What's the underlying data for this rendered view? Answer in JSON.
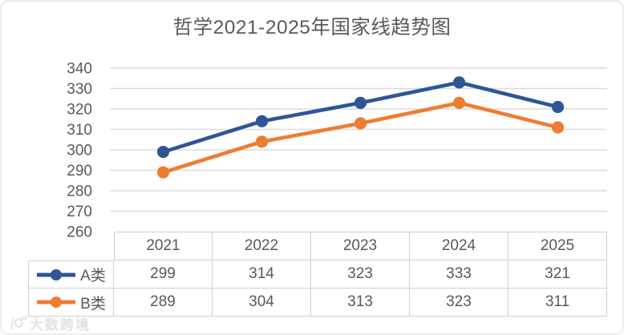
{
  "chart_data": {
    "type": "line",
    "title": "哲学2021-2025年国家线趋势图",
    "categories": [
      "2021",
      "2022",
      "2023",
      "2024",
      "2025"
    ],
    "series": [
      {
        "name": "A类",
        "values": [
          299,
          314,
          323,
          333,
          321
        ],
        "color": "#2F5597"
      },
      {
        "name": "B类",
        "values": [
          289,
          304,
          313,
          323,
          311
        ],
        "color": "#ED7D31"
      }
    ],
    "ylim": [
      260,
      340
    ],
    "yticks": [
      340,
      330,
      320,
      310,
      300,
      290,
      280,
      270,
      260
    ],
    "xlabel": "",
    "ylabel": "",
    "grid": "horizontal",
    "legend_position": "data-table-left",
    "data_table_shown": true,
    "marker": "circle"
  },
  "colors": {
    "text": "#595959",
    "gridline": "#DCDCDC",
    "table_border": "#D2D0D0",
    "background": "#FFFFFF",
    "series_a": "#2F5597",
    "series_b": "#ED7D31"
  },
  "watermark": {
    "text": "大数跨境"
  }
}
